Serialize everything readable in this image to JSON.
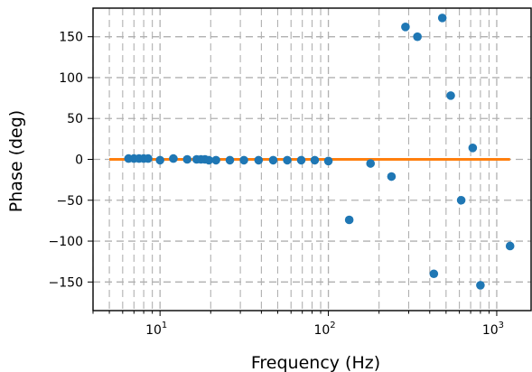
{
  "chart_data": {
    "type": "scatter",
    "title": "",
    "xlabel": "Frequency (Hz)",
    "ylabel": "Phase (deg)",
    "x_scale": "log",
    "xlim": [
      4,
      1600
    ],
    "ylim": [
      -185,
      185
    ],
    "grid": true,
    "x_major_ticks": [
      10,
      100,
      1000
    ],
    "x_tick_labels": [
      {
        "base": "10",
        "exp": "1"
      },
      {
        "base": "10",
        "exp": "2"
      },
      {
        "base": "10",
        "exp": "3"
      }
    ],
    "y_ticks": [
      -150,
      -100,
      -50,
      0,
      50,
      100,
      150
    ],
    "y_tick_labels": [
      "−150",
      "−100",
      "−50",
      "0",
      "50",
      "100",
      "150"
    ],
    "series": [
      {
        "type": "scatter",
        "color": "#1f77b4",
        "points": [
          {
            "x": 6.5,
            "y": 1
          },
          {
            "x": 7.0,
            "y": 1
          },
          {
            "x": 7.5,
            "y": 1
          },
          {
            "x": 8.0,
            "y": 1
          },
          {
            "x": 8.5,
            "y": 1
          },
          {
            "x": 10,
            "y": -1
          },
          {
            "x": 12,
            "y": 1
          },
          {
            "x": 14.5,
            "y": 0
          },
          {
            "x": 16.5,
            "y": 0
          },
          {
            "x": 17.5,
            "y": 0
          },
          {
            "x": 18.5,
            "y": 0
          },
          {
            "x": 19.5,
            "y": -1
          },
          {
            "x": 21.5,
            "y": -1
          },
          {
            "x": 26,
            "y": -1
          },
          {
            "x": 31.5,
            "y": -1
          },
          {
            "x": 38.5,
            "y": -1
          },
          {
            "x": 47,
            "y": -1
          },
          {
            "x": 57,
            "y": -1
          },
          {
            "x": 69,
            "y": -1
          },
          {
            "x": 83,
            "y": -1
          },
          {
            "x": 100,
            "y": -2
          },
          {
            "x": 133,
            "y": -74
          },
          {
            "x": 178,
            "y": -5
          },
          {
            "x": 237,
            "y": -21
          },
          {
            "x": 287,
            "y": 162
          },
          {
            "x": 338,
            "y": 150
          },
          {
            "x": 423,
            "y": -140
          },
          {
            "x": 475,
            "y": 173
          },
          {
            "x": 533,
            "y": 78
          },
          {
            "x": 615,
            "y": -50
          },
          {
            "x": 720,
            "y": 14
          },
          {
            "x": 800,
            "y": -154
          },
          {
            "x": 1200,
            "y": -106
          }
        ]
      },
      {
        "type": "line",
        "color": "#ff7f0e",
        "points": [
          {
            "x": 5,
            "y": 0
          },
          {
            "x": 1200,
            "y": 0
          }
        ]
      }
    ]
  }
}
